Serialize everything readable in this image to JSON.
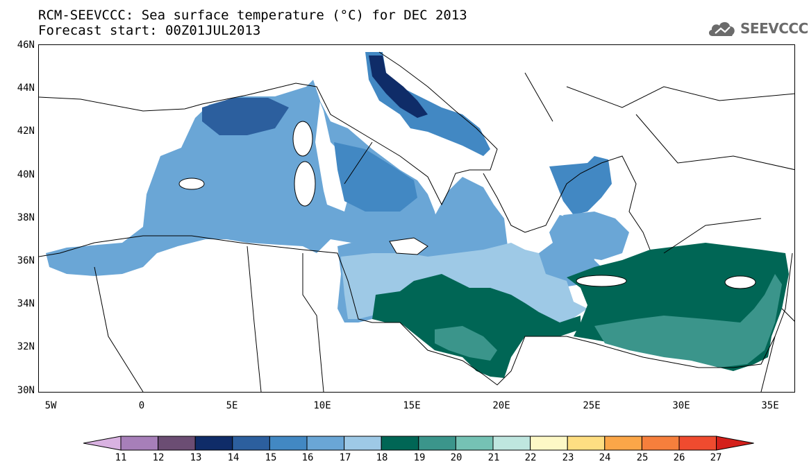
{
  "title": {
    "line1": "RCM-SEEVCCC: Sea surface temperature (°C) for DEC 2013",
    "line2": "Forecast start: 00Z01JUL2013"
  },
  "logo": {
    "text": "SEEVCCC",
    "icon": "cloud-icon",
    "color": "#6b6b6b"
  },
  "axes": {
    "lat_labels": [
      "46N",
      "44N",
      "42N",
      "40N",
      "38N",
      "36N",
      "34N",
      "32N",
      "30N"
    ],
    "lon_labels": [
      "5W",
      "0",
      "5E",
      "10E",
      "15E",
      "20E",
      "25E",
      "30E",
      "35E"
    ],
    "lon_range": [
      -5.5,
      36.5
    ],
    "lat_range": [
      30,
      46
    ]
  },
  "colorbar": {
    "labels": [
      "11",
      "12",
      "13",
      "14",
      "15",
      "16",
      "17",
      "18",
      "19",
      "20",
      "21",
      "22",
      "23",
      "24",
      "25",
      "26",
      "27"
    ],
    "colors": [
      "#d9b2e1",
      "#a77fb9",
      "#6b4d73",
      "#0f2c68",
      "#2c5f9e",
      "#4288c3",
      "#6aa6d6",
      "#9ec9e6",
      "#006655",
      "#3b958b",
      "#75c2b4",
      "#bfe6df",
      "#fdf8c6",
      "#fede82",
      "#fba648",
      "#f67f3c",
      "#ef4b2f",
      "#d4201b"
    ]
  },
  "regions": {
    "gulf_of_lion": "15",
    "western_basin": "16",
    "tyrrhenian_sea": "16",
    "northern_adriatic": "14",
    "central_adriatic": "15",
    "ionian_sea": "17",
    "central_basin_south": "18",
    "gulf_of_sidra": "19",
    "northern_aegean": "15",
    "southern_aegean": "17",
    "levantine_basin": "19-20"
  }
}
